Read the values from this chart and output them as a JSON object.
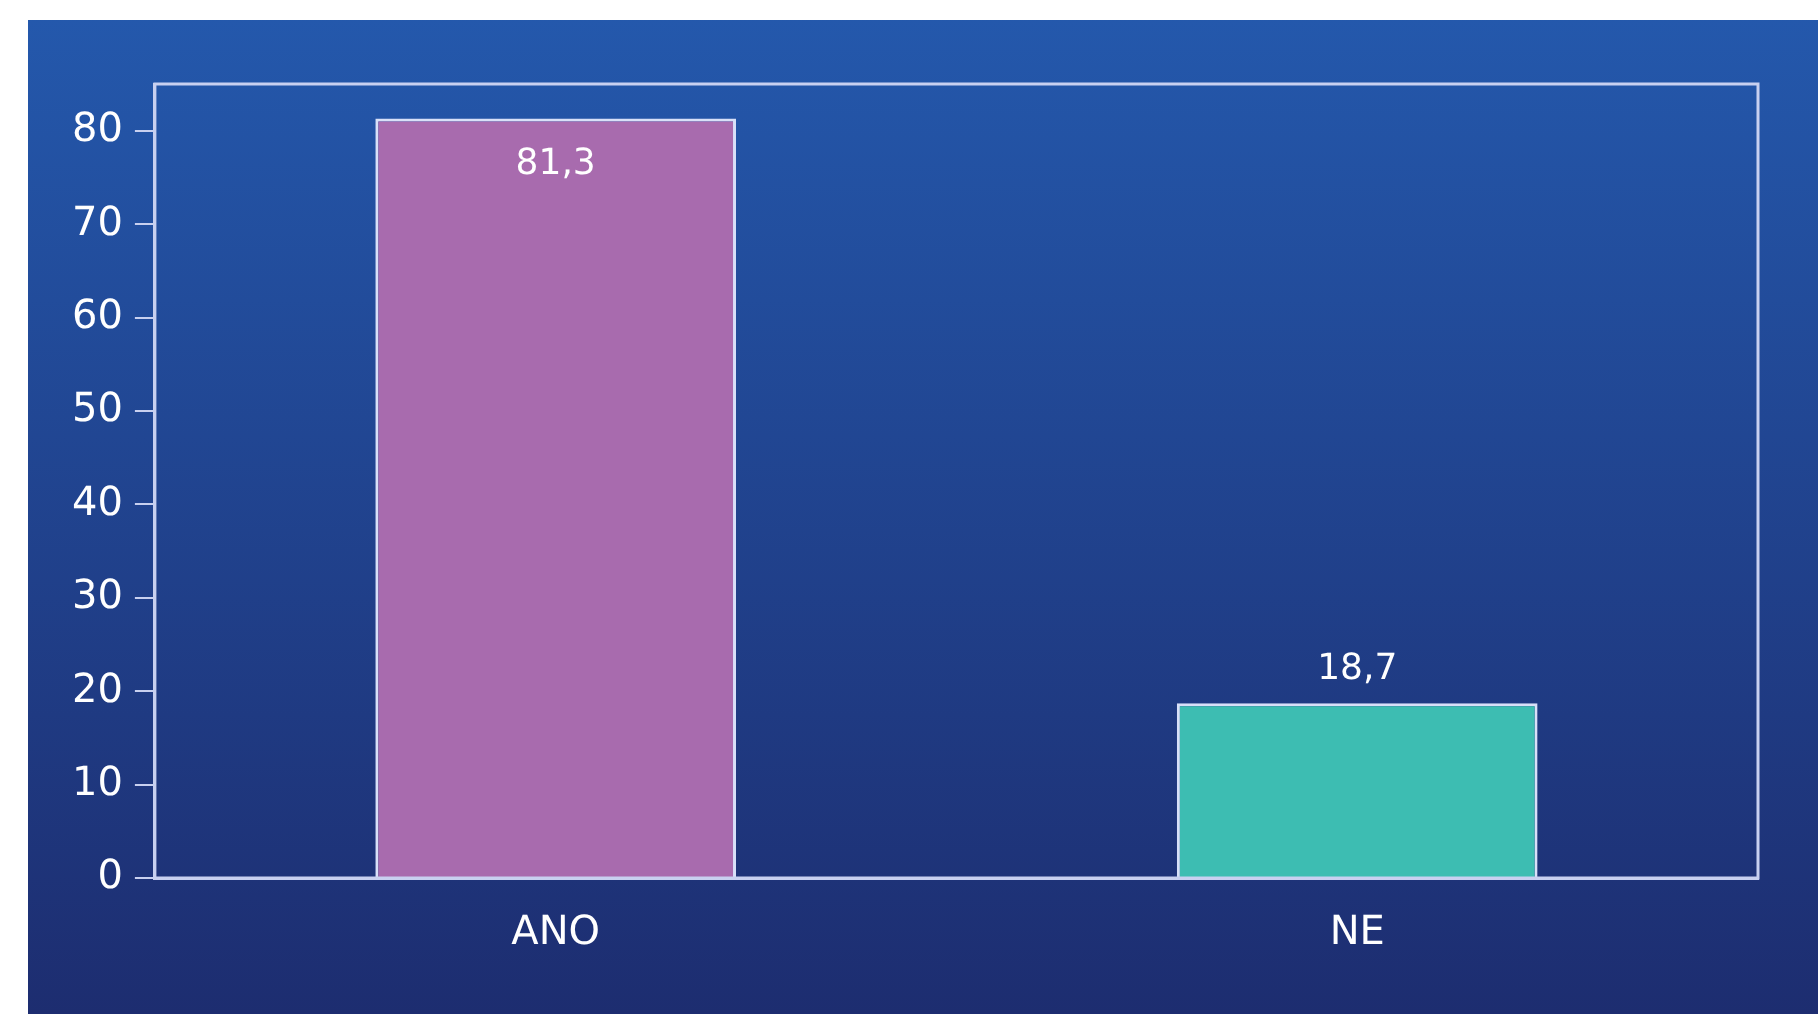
{
  "chart_data": {
    "type": "bar",
    "categories": [
      "ANO",
      "NE"
    ],
    "values": [
      81.3,
      18.7
    ],
    "colors": [
      "#a86bae",
      "#3dbdb2"
    ],
    "value_labels": [
      "81,3",
      "18,7"
    ],
    "ylim": [
      0,
      85
    ],
    "yticks": [
      0,
      10,
      20,
      30,
      40,
      50,
      60,
      70,
      80
    ],
    "grid": false,
    "legend": false
  }
}
